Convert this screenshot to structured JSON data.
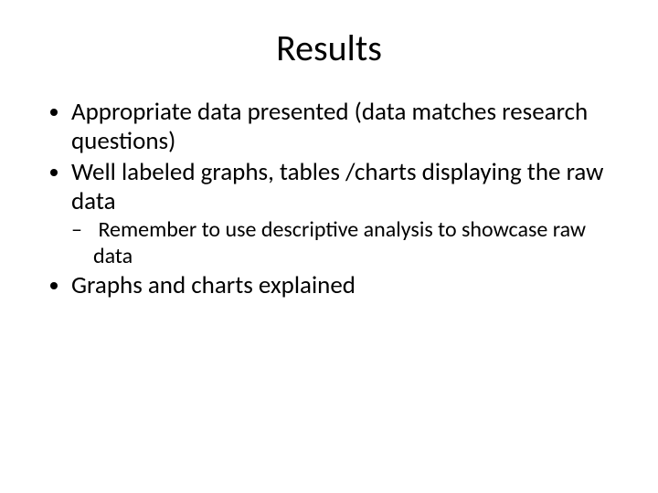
{
  "slide": {
    "title": "Results",
    "bullets": [
      {
        "text": "Appropriate data presented (data matches research questions)"
      },
      {
        "text": "Well labeled graphs, tables /charts displaying the raw data",
        "sub": [
          {
            "text": "Remember to use descriptive analysis to showcase raw data"
          }
        ]
      },
      {
        "text": "Graphs and charts explained"
      }
    ]
  },
  "style": {
    "background_color": "#ffffff",
    "text_color": "#000000",
    "title_fontsize": 40,
    "body_fontsize": 27,
    "sub_fontsize": 24,
    "font_family": "Calibri"
  }
}
